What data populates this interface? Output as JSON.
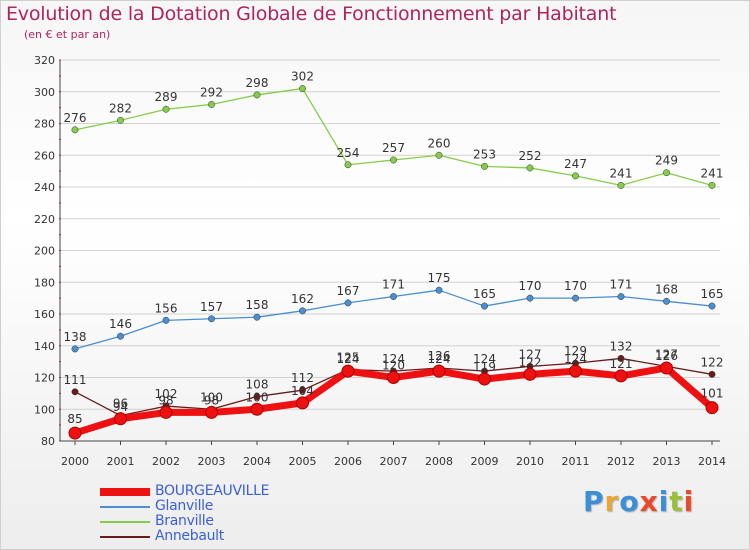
{
  "header": {
    "title": "Evolution de la Dotation Globale de Fonctionnement par Habitant",
    "subtitle": "(en € et par an)"
  },
  "logo": {
    "text": "Proxiti",
    "colors": [
      "#3a8fd6",
      "#e8a53a",
      "#3a8fd6",
      "#e84a2a",
      "#3a8fd6",
      "#9ac03a",
      "#e84a2a"
    ]
  },
  "chart_data": {
    "type": "line",
    "x": [
      "2000",
      "2001",
      "2002",
      "2003",
      "2004",
      "2005",
      "2006",
      "2007",
      "2008",
      "2009",
      "2010",
      "2011",
      "2012",
      "2013",
      "2014"
    ],
    "ylim": [
      80,
      320
    ],
    "yticks": [
      "80",
      "100",
      "120",
      "140",
      "160",
      "180",
      "200",
      "220",
      "240",
      "260",
      "280",
      "300",
      "320"
    ],
    "grid": "horizontal",
    "legend_position": "bottom-left",
    "series": [
      {
        "name": "BOURGEAUVILLE",
        "color": "#ee1111",
        "values": [
          85,
          94,
          98,
          98,
          100,
          104,
          124,
          120,
          124,
          119,
          122,
          124,
          121,
          126,
          101
        ],
        "labels": [
          "85",
          "94",
          "98",
          "98",
          "100",
          "104",
          "124",
          "120",
          "124",
          "119",
          "122",
          "124",
          "121",
          "126",
          "101"
        ]
      },
      {
        "name": "Glanville",
        "color": "#4a8fd1",
        "values": [
          138,
          146,
          156,
          157,
          158,
          162,
          167,
          171,
          175,
          165,
          170,
          170,
          171,
          168,
          165
        ],
        "labels": [
          "138",
          "146",
          "156",
          "157",
          "158",
          "162",
          "167",
          "171",
          "175",
          "165",
          "170",
          "170",
          "171",
          "168",
          "165"
        ]
      },
      {
        "name": "Branville",
        "color": "#86cc4a",
        "values": [
          276,
          282,
          289,
          292,
          298,
          302,
          254,
          257,
          260,
          253,
          252,
          247,
          241,
          249,
          241
        ],
        "labels": [
          "276",
          "282",
          "289",
          "292",
          "298",
          "302",
          "254",
          "257",
          "260",
          "253",
          "252",
          "247",
          "241",
          "249",
          "241"
        ]
      },
      {
        "name": "Annebault",
        "color": "#6b1a1a",
        "values": [
          111,
          96,
          102,
          100,
          108,
          112,
          125,
          124,
          126,
          124,
          127,
          129,
          132,
          127,
          122
        ],
        "labels": [
          "111",
          "96",
          "102",
          "100",
          "108",
          "112",
          "125",
          "124",
          "126",
          "124",
          "127",
          "129",
          "132",
          "127",
          "122"
        ]
      }
    ]
  }
}
